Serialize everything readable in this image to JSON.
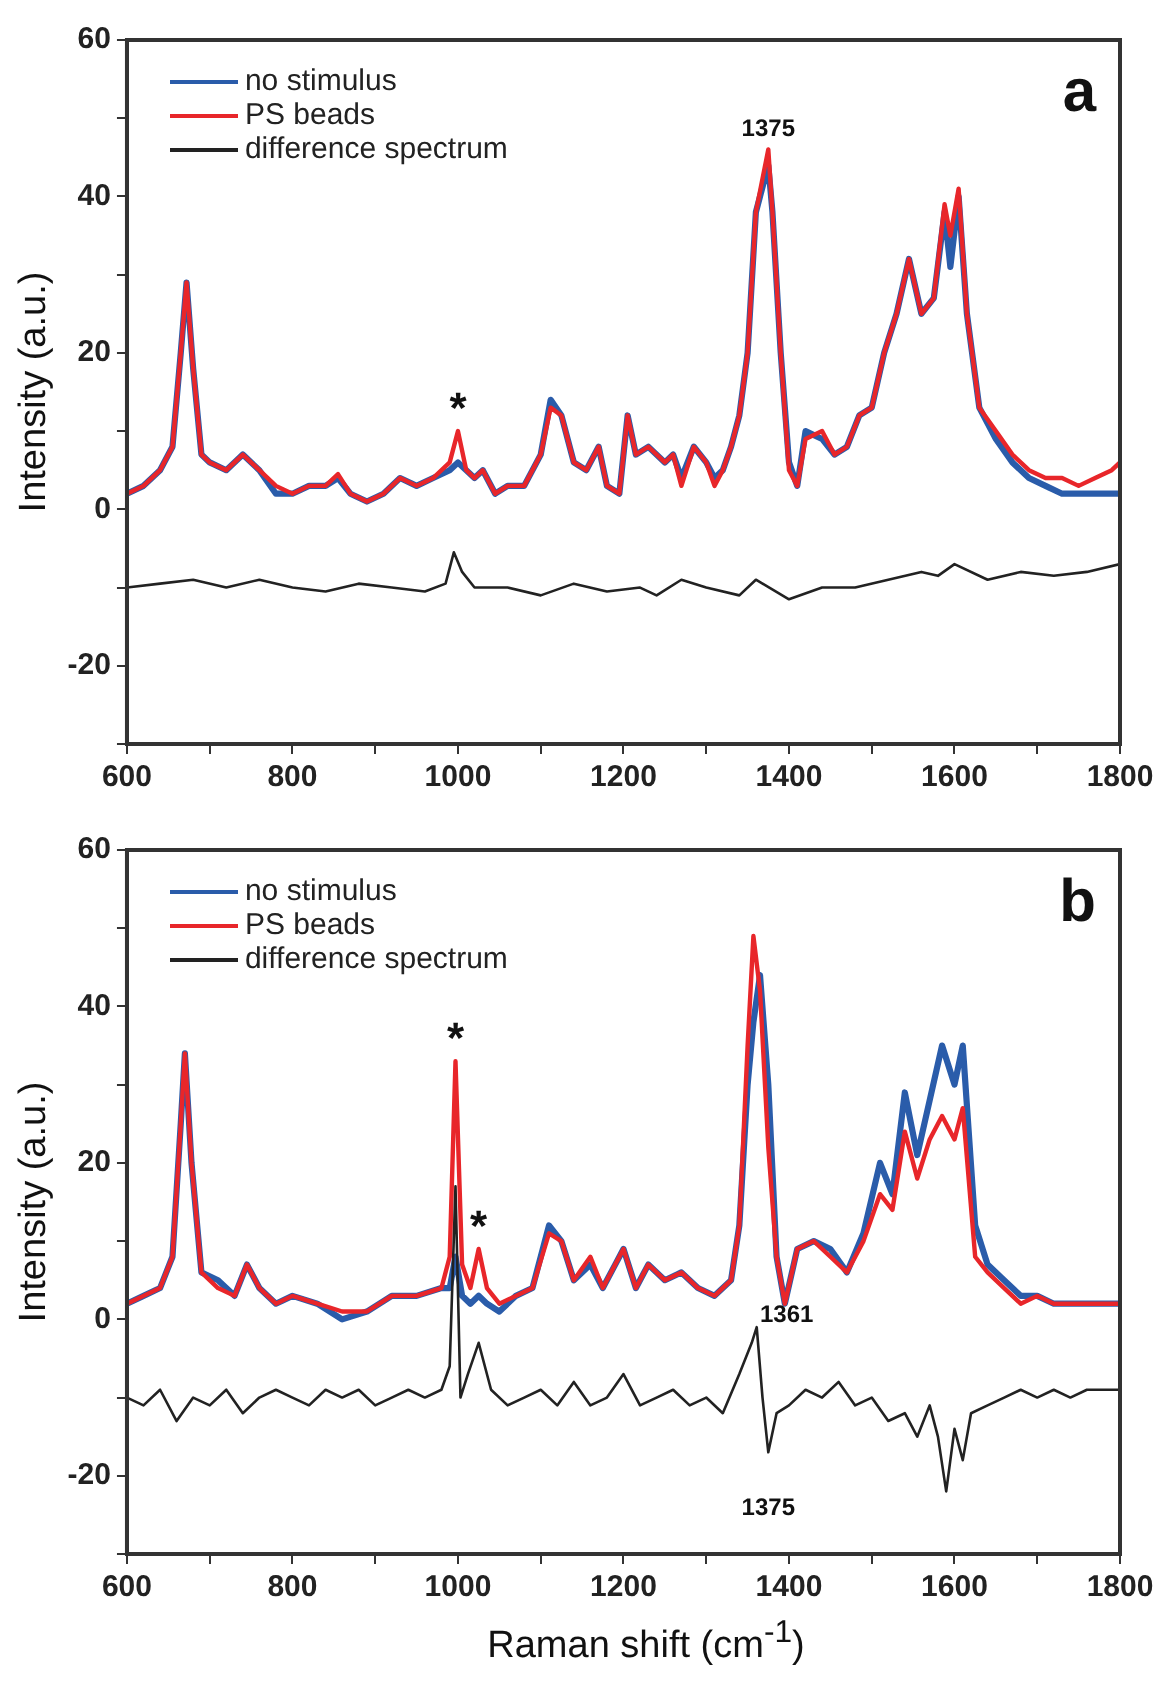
{
  "chart_data": [
    {
      "type": "line",
      "ylabel": "Intensity (a.u.)",
      "xlim": [
        600,
        1800
      ],
      "ylim": [
        -30,
        60
      ],
      "xticks": [
        600,
        {
          "value": 700,
          "label": null
        },
        800,
        {
          "value": 900,
          "label": null
        },
        1000,
        {
          "value": 1100,
          "label": null
        },
        1200,
        {
          "value": 1300,
          "label": null
        },
        1400,
        {
          "value": 1500,
          "label": null
        },
        1600,
        {
          "value": 1700,
          "label": null
        },
        1800
      ],
      "yticks": [
        {
          "value": -30,
          "label": null
        },
        -20,
        {
          "value": -10,
          "label": null
        },
        0,
        {
          "value": 10,
          "label": null
        },
        20,
        {
          "value": 30,
          "label": null
        },
        40,
        {
          "value": 50,
          "label": null
        },
        60
      ],
      "grid": false,
      "legend": "top left",
      "marker": "none",
      "line_style": "solid",
      "annotations": [
        "a",
        {
          "text": "*",
          "x": 1000,
          "y": 10
        },
        {
          "text": "1375",
          "x": 1375,
          "y": 46
        }
      ],
      "series": [
        {
          "name": "no stimulus",
          "color": "#2a5caa",
          "x": [
            600,
            620,
            640,
            655,
            665,
            672,
            680,
            690,
            700,
            720,
            740,
            760,
            780,
            800,
            820,
            840,
            855,
            870,
            890,
            910,
            930,
            950,
            970,
            990,
            1000,
            1010,
            1020,
            1030,
            1045,
            1060,
            1080,
            1100,
            1112,
            1125,
            1140,
            1155,
            1170,
            1180,
            1195,
            1205,
            1215,
            1230,
            1250,
            1260,
            1270,
            1285,
            1300,
            1310,
            1320,
            1330,
            1340,
            1350,
            1360,
            1375,
            1380,
            1390,
            1400,
            1410,
            1420,
            1440,
            1455,
            1470,
            1485,
            1500,
            1515,
            1530,
            1545,
            1560,
            1575,
            1588,
            1595,
            1605,
            1615,
            1630,
            1650,
            1670,
            1690,
            1710,
            1730,
            1750,
            1770,
            1790,
            1800
          ],
          "values": [
            2,
            3,
            5,
            8,
            20,
            29,
            18,
            7,
            6,
            5,
            7,
            5,
            2,
            2,
            3,
            3,
            4,
            2,
            1,
            2,
            4,
            3,
            4,
            5,
            6,
            5,
            4,
            5,
            2,
            3,
            3,
            7,
            14,
            12,
            6,
            5,
            8,
            3,
            2,
            12,
            7,
            8,
            6,
            7,
            4,
            8,
            6,
            4,
            5,
            8,
            12,
            20,
            38,
            44,
            38,
            20,
            6,
            3,
            10,
            9,
            7,
            8,
            12,
            13,
            20,
            25,
            32,
            25,
            27,
            38,
            31,
            40,
            25,
            13,
            9,
            6,
            4,
            3,
            2,
            2,
            2,
            2,
            2
          ]
        },
        {
          "name": "PS beads",
          "color": "#e8262a",
          "x": [
            600,
            620,
            640,
            655,
            665,
            672,
            680,
            690,
            700,
            720,
            740,
            760,
            780,
            800,
            820,
            840,
            855,
            870,
            890,
            910,
            930,
            950,
            970,
            990,
            1000,
            1010,
            1020,
            1030,
            1045,
            1060,
            1080,
            1100,
            1112,
            1125,
            1140,
            1155,
            1170,
            1180,
            1195,
            1205,
            1215,
            1230,
            1250,
            1260,
            1270,
            1285,
            1300,
            1310,
            1320,
            1330,
            1340,
            1350,
            1360,
            1375,
            1380,
            1390,
            1400,
            1410,
            1420,
            1440,
            1455,
            1470,
            1485,
            1500,
            1515,
            1530,
            1545,
            1560,
            1575,
            1588,
            1595,
            1605,
            1615,
            1630,
            1650,
            1670,
            1690,
            1710,
            1730,
            1750,
            1770,
            1790,
            1800
          ],
          "values": [
            2,
            3,
            5,
            8,
            20,
            29,
            18,
            7,
            6,
            5,
            7,
            5,
            3,
            2,
            3,
            3,
            4.5,
            2,
            1,
            2,
            4,
            3,
            4,
            6,
            10,
            5,
            4,
            5,
            2,
            3,
            3,
            7,
            13,
            12,
            6,
            5,
            8,
            3,
            2,
            12,
            7,
            8,
            6,
            7,
            3,
            8,
            6,
            3,
            5,
            8,
            12,
            20,
            38,
            46,
            38,
            20,
            5,
            3,
            9,
            10,
            7,
            8,
            12,
            13,
            20,
            25,
            32,
            25,
            27,
            39,
            35,
            41,
            25,
            13,
            10,
            7,
            5,
            4,
            4,
            3,
            4,
            5,
            6
          ]
        },
        {
          "name": "difference spectrum",
          "color": "#222222",
          "x": [
            600,
            640,
            680,
            720,
            760,
            800,
            840,
            880,
            920,
            960,
            985,
            995,
            1005,
            1020,
            1060,
            1100,
            1140,
            1180,
            1220,
            1240,
            1270,
            1300,
            1340,
            1360,
            1400,
            1440,
            1480,
            1520,
            1560,
            1580,
            1600,
            1640,
            1680,
            1720,
            1760,
            1800
          ],
          "values": [
            -10,
            -9.5,
            -9,
            -10,
            -9,
            -10,
            -10.5,
            -9.5,
            -10,
            -10.5,
            -9.5,
            -5.5,
            -8,
            -10,
            -10,
            -11,
            -9.5,
            -10.5,
            -10,
            -11,
            -9,
            -10,
            -11,
            -9,
            -11.5,
            -10,
            -10,
            -9,
            -8,
            -8.5,
            -7,
            -9,
            -8,
            -8.5,
            -8,
            -7
          ]
        }
      ]
    },
    {
      "type": "line",
      "xlabel": "Raman shift (cm$^{-1}$)",
      "ylabel": "Intensity (a.u.)",
      "xlim": [
        600,
        1800
      ],
      "ylim": [
        -30,
        60
      ],
      "xticks": [
        600,
        {
          "value": 700,
          "label": null
        },
        800,
        {
          "value": 900,
          "label": null
        },
        1000,
        {
          "value": 1100,
          "label": null
        },
        1200,
        {
          "value": 1300,
          "label": null
        },
        1400,
        {
          "value": 1500,
          "label": null
        },
        1600,
        {
          "value": 1700,
          "label": null
        },
        1800
      ],
      "yticks": [
        {
          "value": -30,
          "label": null
        },
        -20,
        {
          "value": -10,
          "label": null
        },
        0,
        {
          "value": 10,
          "label": null
        },
        20,
        {
          "value": 30,
          "label": null
        },
        40,
        {
          "value": 50,
          "label": null
        },
        60
      ],
      "grid": false,
      "legend": "top left",
      "marker": "none",
      "line_style": "solid",
      "annotations": [
        "b",
        {
          "text": "*",
          "x": 997,
          "y": 33
        },
        {
          "text": "*",
          "x": 1025,
          "y": 9
        },
        {
          "text": "1361",
          "x": 1361,
          "y": -1
        },
        {
          "text": "1375",
          "x": 1375,
          "y": -17
        }
      ],
      "series": [
        {
          "name": "no stimulus",
          "color": "#2a5caa",
          "x": [
            600,
            620,
            640,
            655,
            665,
            670,
            678,
            690,
            710,
            730,
            745,
            760,
            780,
            800,
            830,
            860,
            890,
            920,
            950,
            980,
            990,
            997,
            1005,
            1015,
            1025,
            1035,
            1050,
            1070,
            1090,
            1110,
            1125,
            1140,
            1160,
            1175,
            1190,
            1200,
            1215,
            1230,
            1250,
            1270,
            1290,
            1310,
            1330,
            1340,
            1350,
            1357,
            1365,
            1375,
            1385,
            1395,
            1410,
            1430,
            1450,
            1470,
            1490,
            1510,
            1525,
            1540,
            1555,
            1570,
            1585,
            1600,
            1610,
            1625,
            1640,
            1660,
            1680,
            1700,
            1720,
            1750,
            1780,
            1800
          ],
          "values": [
            2,
            3,
            4,
            8,
            25,
            34,
            20,
            6,
            5,
            3,
            7,
            4,
            2,
            3,
            2,
            0,
            1,
            3,
            3,
            4,
            4,
            8,
            3,
            2,
            3,
            2,
            1,
            3,
            4,
            12,
            10,
            5,
            7,
            4,
            7,
            9,
            4,
            7,
            5,
            6,
            4,
            3,
            5,
            12,
            30,
            38,
            44,
            30,
            8,
            2,
            9,
            10,
            9,
            6,
            11,
            20,
            16,
            29,
            21,
            28,
            35,
            30,
            35,
            12,
            7,
            5,
            3,
            3,
            2,
            2,
            2,
            2
          ]
        },
        {
          "name": "PS beads",
          "color": "#e8262a",
          "x": [
            600,
            620,
            640,
            655,
            665,
            670,
            678,
            690,
            710,
            730,
            745,
            760,
            780,
            800,
            830,
            860,
            890,
            920,
            950,
            980,
            990,
            997,
            1005,
            1015,
            1025,
            1035,
            1050,
            1070,
            1090,
            1110,
            1125,
            1140,
            1160,
            1175,
            1190,
            1200,
            1215,
            1230,
            1250,
            1270,
            1290,
            1310,
            1330,
            1340,
            1350,
            1357,
            1365,
            1375,
            1385,
            1395,
            1410,
            1430,
            1450,
            1470,
            1490,
            1510,
            1525,
            1540,
            1555,
            1570,
            1585,
            1600,
            1610,
            1625,
            1640,
            1660,
            1680,
            1700,
            1720,
            1750,
            1780,
            1800
          ],
          "values": [
            2,
            3,
            4,
            8,
            25,
            34,
            20,
            6,
            4,
            3,
            7,
            4,
            2,
            3,
            2,
            1,
            1,
            3,
            3,
            4,
            8,
            33,
            7,
            4,
            9,
            4,
            2,
            3,
            4,
            11,
            10,
            5,
            8,
            4,
            7,
            9,
            4,
            7,
            5,
            6,
            4,
            3,
            5,
            12,
            35,
            49,
            42,
            22,
            8,
            2,
            9,
            10,
            8,
            6,
            10,
            16,
            14,
            24,
            18,
            23,
            26,
            23,
            27,
            8,
            6,
            4,
            2,
            3,
            2,
            2,
            2,
            2
          ]
        },
        {
          "name": "difference spectrum",
          "color": "#222222",
          "x": [
            600,
            620,
            640,
            660,
            680,
            700,
            720,
            740,
            760,
            780,
            800,
            820,
            840,
            860,
            880,
            900,
            920,
            940,
            960,
            980,
            990,
            997,
            1003,
            1012,
            1025,
            1040,
            1060,
            1080,
            1100,
            1120,
            1140,
            1160,
            1180,
            1200,
            1220,
            1240,
            1260,
            1280,
            1300,
            1320,
            1340,
            1355,
            1361,
            1368,
            1375,
            1385,
            1400,
            1420,
            1440,
            1460,
            1480,
            1500,
            1520,
            1540,
            1555,
            1570,
            1580,
            1590,
            1600,
            1610,
            1620,
            1640,
            1660,
            1680,
            1700,
            1720,
            1740,
            1760,
            1780,
            1800
          ],
          "values": [
            -10,
            -11,
            -9,
            -13,
            -10,
            -11,
            -9,
            -12,
            -10,
            -9,
            -10,
            -11,
            -9,
            -10,
            -9,
            -11,
            -10,
            -9,
            -10,
            -9,
            -6,
            17,
            -10,
            -7,
            -3,
            -9,
            -11,
            -10,
            -9,
            -11,
            -8,
            -11,
            -10,
            -7,
            -11,
            -10,
            -9,
            -11,
            -10,
            -12,
            -7,
            -3,
            -1,
            -10,
            -17,
            -12,
            -11,
            -9,
            -10,
            -8,
            -11,
            -10,
            -13,
            -12,
            -15,
            -11,
            -15,
            -22,
            -14,
            -18,
            -12,
            -11,
            -10,
            -9,
            -10,
            -9,
            -10,
            -9,
            -9,
            -9
          ]
        }
      ]
    }
  ]
}
